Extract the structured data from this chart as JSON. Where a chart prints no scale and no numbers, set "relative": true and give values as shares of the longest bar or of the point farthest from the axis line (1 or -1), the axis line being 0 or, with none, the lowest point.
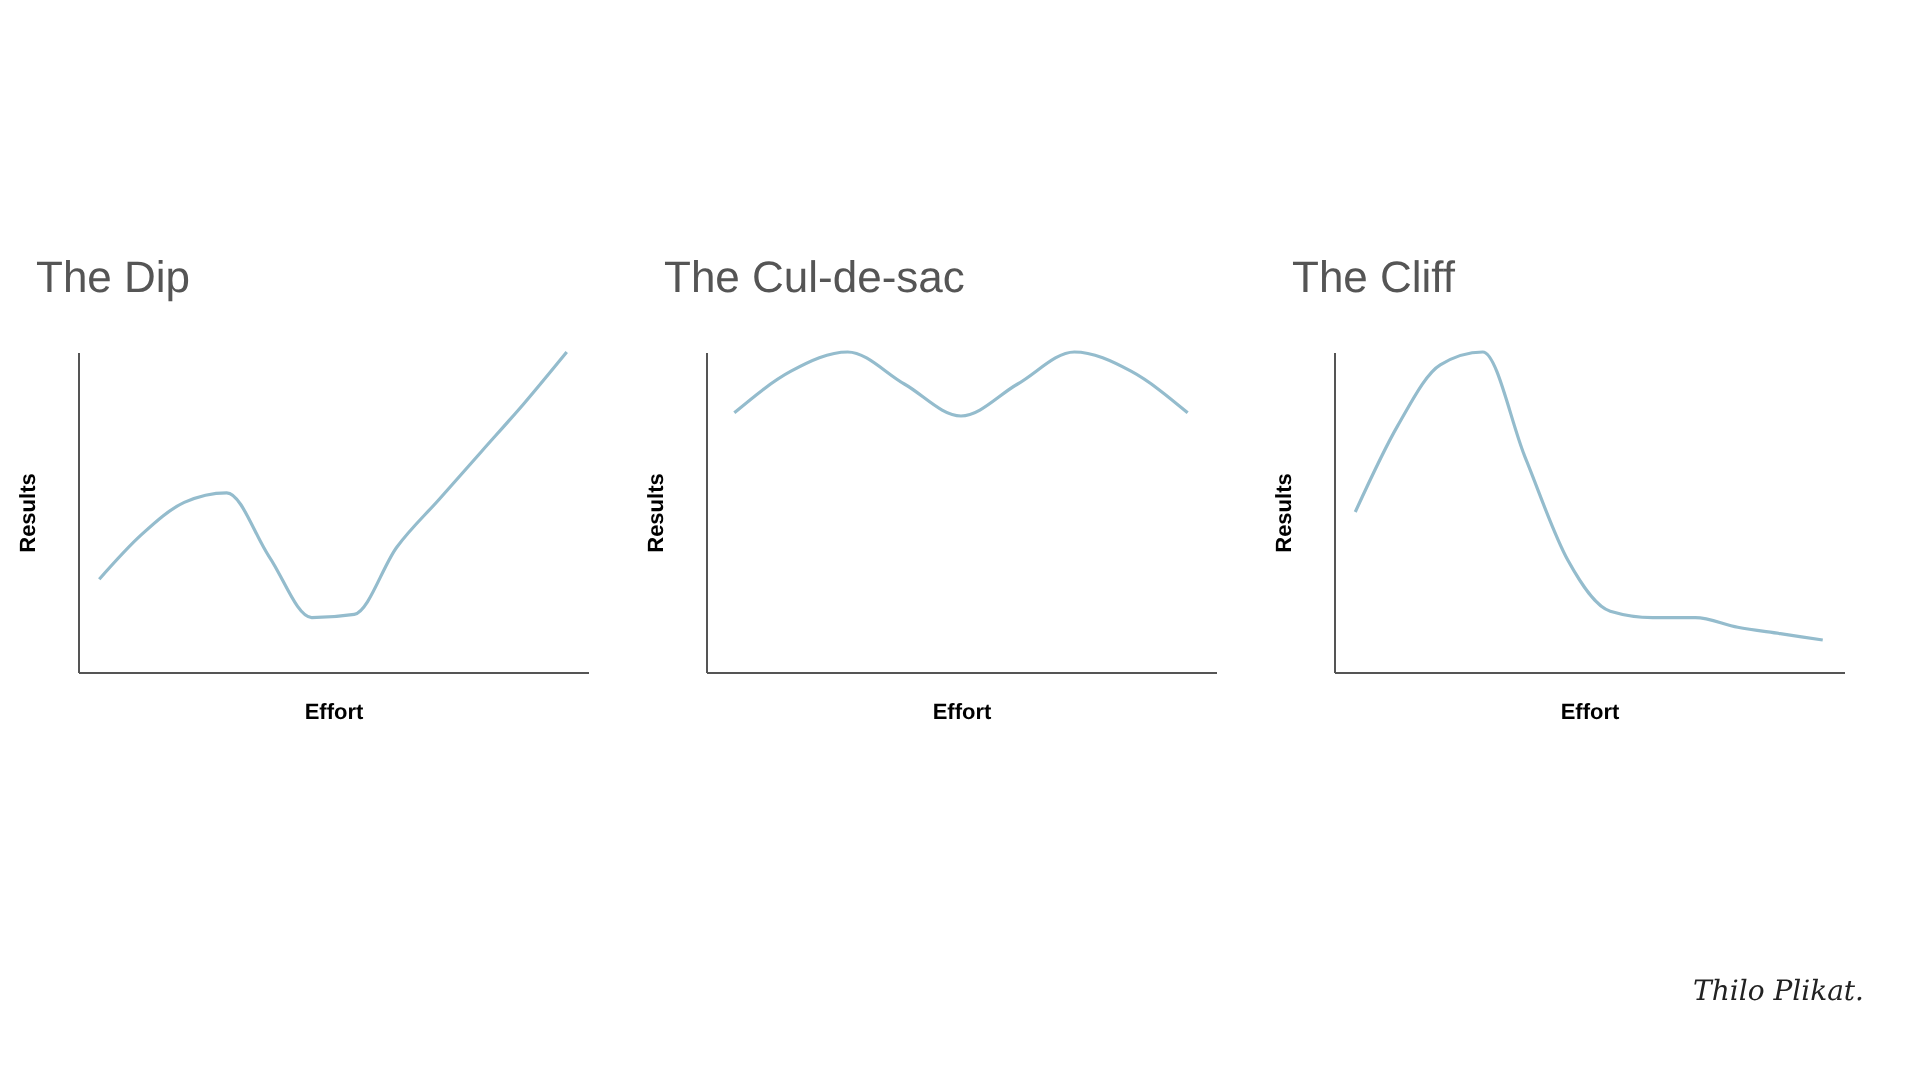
{
  "chart_data": [
    {
      "type": "line",
      "title": "The Dip",
      "xlabel": "Effort",
      "ylabel": "Results",
      "categories": [
        null,
        null,
        null,
        null,
        null,
        null,
        null,
        null,
        null,
        null,
        null,
        null
      ],
      "relative": true,
      "tick_labels": false,
      "series": [
        {
          "color": "#94bccd",
          "values": [
            0.29,
            0.43,
            0.53,
            0.56,
            0.36,
            0.17,
            0.18,
            0.39,
            0.54,
            0.69,
            0.84,
            1.0
          ]
        }
      ]
    },
    {
      "type": "line",
      "title": "The Cul-de-sac",
      "xlabel": "Effort",
      "ylabel": "Results",
      "categories": [
        null,
        null,
        null,
        null,
        null,
        null,
        null,
        null,
        null
      ],
      "relative": true,
      "tick_labels": false,
      "series": [
        {
          "color": "#94bccd",
          "values": [
            0.81,
            0.94,
            1.0,
            0.9,
            0.8,
            0.9,
            1.0,
            0.94,
            0.81
          ]
        }
      ]
    },
    {
      "type": "line",
      "title": "The Cliff",
      "xlabel": "Effort",
      "ylabel": "Results",
      "categories": [
        null,
        null,
        null,
        null,
        null,
        null,
        null,
        null,
        null,
        null,
        null,
        null
      ],
      "relative": true,
      "tick_labels": false,
      "annotations": [
        "Thilo Plikat."
      ],
      "series": [
        {
          "color": "#94bccd",
          "values": [
            0.5,
            0.77,
            0.96,
            1.0,
            0.67,
            0.35,
            0.19,
            0.17,
            0.17,
            0.14,
            0.12,
            0.1
          ]
        }
      ]
    }
  ]
}
